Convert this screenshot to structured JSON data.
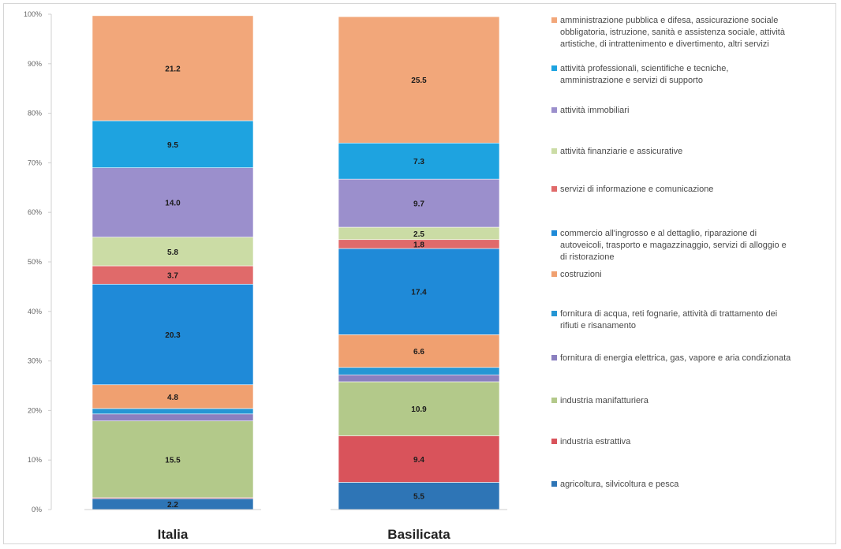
{
  "chart_data": {
    "type": "bar",
    "stacked": true,
    "percent": true,
    "categories": [
      "Italia",
      "Basilicata"
    ],
    "ylim": [
      0,
      100
    ],
    "yticks": [
      "0%",
      "10%",
      "20%",
      "30%",
      "40%",
      "50%",
      "60%",
      "70%",
      "80%",
      "90%",
      "100%"
    ],
    "grid": false,
    "legend_position": "right",
    "series": [
      {
        "name": "agricoltura, silvicoltura e pesca",
        "color": "#2e75b6",
        "values": [
          2.2,
          5.5
        ],
        "labels": [
          "2.2",
          "5.5"
        ]
      },
      {
        "name": "industria estrattiva",
        "color": "#d9535b",
        "values": [
          0.2,
          9.4
        ],
        "labels": [
          "",
          "9.4"
        ]
      },
      {
        "name": "industria manifatturiera",
        "color": "#b3c98a",
        "values": [
          15.5,
          10.9
        ],
        "labels": [
          "15.5",
          "10.9"
        ]
      },
      {
        "name": "fornitura di energia elettrica, gas, vapore e aria condizionata",
        "color": "#8a7fbf",
        "values": [
          1.4,
          1.4
        ],
        "labels": [
          "",
          ""
        ]
      },
      {
        "name": "fornitura di acqua, reti fognarie, attività di trattamento dei rifiuti e risanamento",
        "color": "#2596d4",
        "values": [
          1.1,
          1.5
        ],
        "labels": [
          "",
          ""
        ]
      },
      {
        "name": "costruzioni",
        "color": "#f0a070",
        "values": [
          4.8,
          6.6
        ],
        "labels": [
          "4.8",
          "6.6"
        ]
      },
      {
        "name": "commercio all'ingrosso e al dettaglio, riparazione di autoveicoli, trasporto e magazzinaggio, servizi di alloggio e di ristorazione",
        "color": "#1f8ad8",
        "values": [
          20.3,
          17.4
        ],
        "labels": [
          "20.3",
          "17.4"
        ]
      },
      {
        "name": "servizi di informazione e comunicazione",
        "color": "#e06a6a",
        "values": [
          3.7,
          1.8
        ],
        "labels": [
          "3.7",
          "1.8"
        ]
      },
      {
        "name": "attività finanziarie e assicurative",
        "color": "#cbdca5",
        "values": [
          5.8,
          2.5
        ],
        "labels": [
          "5.8",
          "2.5"
        ]
      },
      {
        "name": "attività immobiliari",
        "color": "#9b8fcc",
        "values": [
          14.0,
          9.7
        ],
        "labels": [
          "14.0",
          "9.7"
        ]
      },
      {
        "name": "attività professionali, scientifiche e tecniche, amministrazione e servizi di supporto",
        "color": "#1ea3e0",
        "values": [
          9.5,
          7.3
        ],
        "labels": [
          "9.5",
          "7.3"
        ]
      },
      {
        "name": "amministrazione pubblica e difesa, assicurazione sociale obbligatoria, istruzione, sanità e assistenza sociale, attività artistiche, di intrattenimento e divertimento, altri servizi",
        "color": "#f2a77a",
        "values": [
          21.2,
          25.5
        ],
        "labels": [
          "21.2",
          "25.5"
        ]
      }
    ]
  },
  "legend_lines": [
    [
      "amministrazione pubblica e difesa, assicurazione sociale",
      "obbligatoria, istruzione, sanità e assistenza sociale, attività",
      "artistiche, di intrattenimento e divertimento, altri servizi"
    ],
    [
      "attività professionali, scientifiche e tecniche,",
      "amministrazione e servizi di supporto"
    ],
    [
      "attività immobiliari"
    ],
    [
      "attività finanziarie e assicurative"
    ],
    [
      "servizi di informazione e comunicazione"
    ],
    [
      "commercio all'ingrosso e al dettaglio, riparazione di",
      "autoveicoli, trasporto e magazzinaggio, servizi di alloggio e",
      "di ristorazione"
    ],
    [
      "costruzioni"
    ],
    [
      "fornitura di acqua, reti fognarie, attività di trattamento dei",
      "rifiuti e risanamento"
    ],
    [
      "fornitura di energia elettrica, gas, vapore e aria condizionata"
    ],
    [
      "industria manifatturiera"
    ],
    [
      "industria estrattiva"
    ],
    [
      "agricoltura, silvicoltura e pesca"
    ]
  ]
}
